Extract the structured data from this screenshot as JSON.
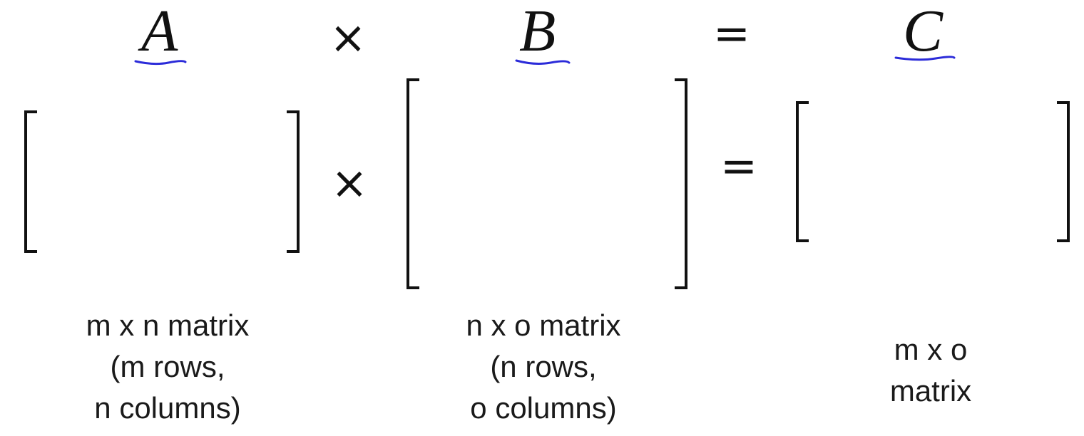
{
  "equation_top": {
    "matrix_a": "A",
    "times": "×",
    "matrix_b": "B",
    "equals": "=",
    "matrix_c": "C"
  },
  "equation_middle": {
    "times": "×",
    "equals": "="
  },
  "colors": {
    "underline": "#2b2bd9",
    "ink": "#111111"
  },
  "captions": {
    "a": {
      "line1": "m x n matrix",
      "line2": "(m rows,",
      "line3": "n columns)"
    },
    "b": {
      "line1": "n x o matrix",
      "line2": "(n rows,",
      "line3": "o columns)"
    },
    "c": {
      "line1": "m x o",
      "line2": "matrix"
    }
  }
}
